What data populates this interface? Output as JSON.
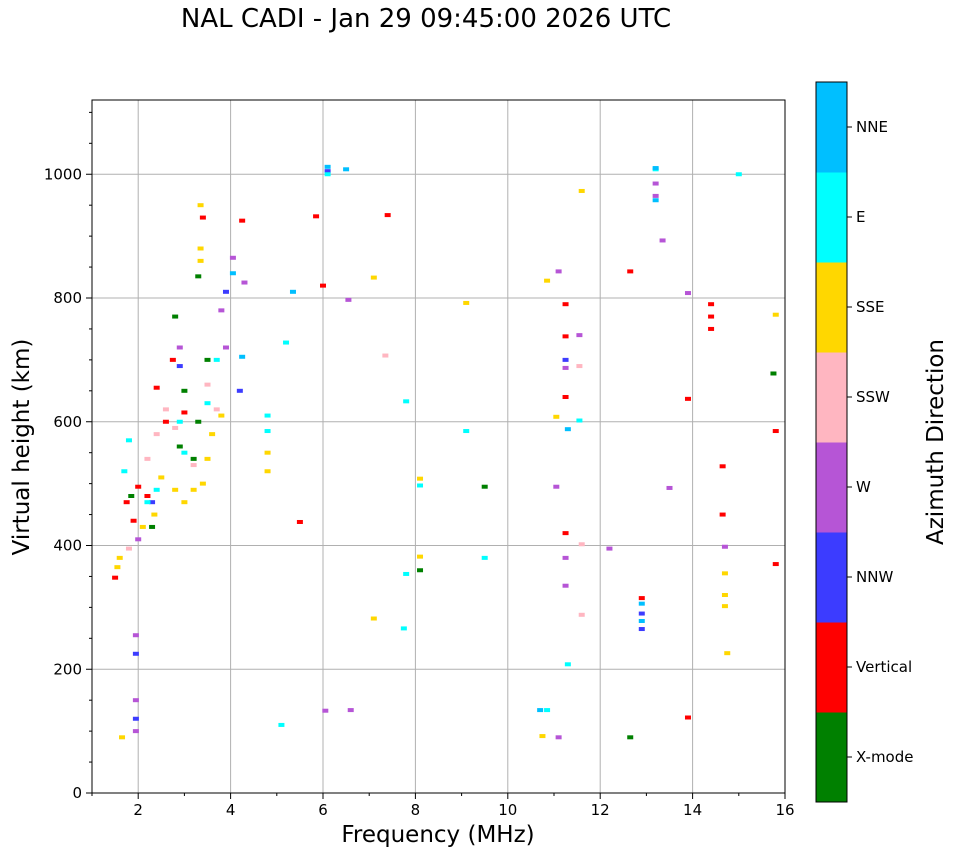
{
  "chart_data": {
    "type": "scatter",
    "title": "NAL CADI - Jan 29 09:45:00 2026 UTC",
    "xlabel": "Frequency (MHz)",
    "ylabel": "Virtual height (km)",
    "xlim": [
      1,
      16
    ],
    "ylim": [
      0,
      1120
    ],
    "xticks": [
      2,
      4,
      6,
      8,
      10,
      12,
      14,
      16
    ],
    "yticks": [
      0,
      200,
      400,
      600,
      800,
      1000
    ],
    "grid": true,
    "colorbar": {
      "label": "Azimuth Direction",
      "categories": [
        "X-mode",
        "Vertical",
        "NNW",
        "W",
        "SSW",
        "SSE",
        "E",
        "NNE"
      ],
      "colors": {
        "X-mode": "#008000",
        "Vertical": "#ff0000",
        "NNW": "#3c3cff",
        "W": "#b655d6",
        "SSW": "#ffb6c1",
        "SSE": "#ffd700",
        "E": "#00ffff",
        "NNE": "#00bfff"
      }
    },
    "series": [
      {
        "name": "X-mode",
        "points": [
          [
            1.85,
            480
          ],
          [
            2.3,
            430
          ],
          [
            2.8,
            770
          ],
          [
            2.9,
            560
          ],
          [
            3.0,
            650
          ],
          [
            3.2,
            540
          ],
          [
            3.3,
            600
          ],
          [
            3.5,
            700
          ],
          [
            3.3,
            835
          ],
          [
            8.1,
            360
          ],
          [
            9.5,
            495
          ],
          [
            12.65,
            90
          ],
          [
            15.75,
            678
          ]
        ]
      },
      {
        "name": "Vertical",
        "points": [
          [
            1.5,
            348
          ],
          [
            1.75,
            470
          ],
          [
            1.9,
            440
          ],
          [
            2.0,
            495
          ],
          [
            2.2,
            480
          ],
          [
            2.4,
            655
          ],
          [
            2.6,
            600
          ],
          [
            2.75,
            700
          ],
          [
            3.0,
            615
          ],
          [
            3.4,
            930
          ],
          [
            4.25,
            925
          ],
          [
            5.5,
            438
          ],
          [
            5.85,
            932
          ],
          [
            6.0,
            820
          ],
          [
            7.4,
            934
          ],
          [
            11.25,
            738
          ],
          [
            11.25,
            640
          ],
          [
            11.25,
            420
          ],
          [
            11.25,
            790
          ],
          [
            12.65,
            843
          ],
          [
            12.9,
            315
          ],
          [
            13.9,
            637
          ],
          [
            13.9,
            122
          ],
          [
            14.4,
            790
          ],
          [
            14.4,
            770
          ],
          [
            14.4,
            750
          ],
          [
            14.65,
            528
          ],
          [
            14.65,
            450
          ],
          [
            15.8,
            585
          ],
          [
            15.8,
            370
          ]
        ]
      },
      {
        "name": "NNW",
        "points": [
          [
            1.95,
            225
          ],
          [
            1.95,
            120
          ],
          [
            2.3,
            470
          ],
          [
            2.9,
            690
          ],
          [
            3.9,
            810
          ],
          [
            4.2,
            650
          ],
          [
            6.1,
            1005
          ],
          [
            11.25,
            700
          ],
          [
            12.9,
            290
          ],
          [
            12.9,
            265
          ]
        ]
      },
      {
        "name": "W",
        "points": [
          [
            1.95,
            255
          ],
          [
            1.95,
            150
          ],
          [
            1.95,
            100
          ],
          [
            2.0,
            410
          ],
          [
            2.9,
            720
          ],
          [
            3.8,
            780
          ],
          [
            3.9,
            720
          ],
          [
            4.05,
            865
          ],
          [
            4.3,
            825
          ],
          [
            6.05,
            133
          ],
          [
            6.6,
            134
          ],
          [
            6.55,
            797
          ],
          [
            11.05,
            495
          ],
          [
            11.1,
            843
          ],
          [
            11.25,
            380
          ],
          [
            11.25,
            335
          ],
          [
            11.25,
            687
          ],
          [
            11.55,
            740
          ],
          [
            12.2,
            395
          ],
          [
            13.2,
            985
          ],
          [
            13.2,
            965
          ],
          [
            13.35,
            893
          ],
          [
            13.5,
            493
          ],
          [
            13.9,
            808
          ],
          [
            14.7,
            398
          ],
          [
            11.1,
            90
          ]
        ]
      },
      {
        "name": "SSW",
        "points": [
          [
            1.8,
            395
          ],
          [
            2.2,
            540
          ],
          [
            2.4,
            580
          ],
          [
            2.6,
            620
          ],
          [
            2.8,
            590
          ],
          [
            3.2,
            530
          ],
          [
            3.5,
            660
          ],
          [
            3.7,
            620
          ],
          [
            7.35,
            707
          ],
          [
            11.55,
            690
          ],
          [
            11.6,
            402
          ],
          [
            11.6,
            288
          ]
        ]
      },
      {
        "name": "SSE",
        "points": [
          [
            1.55,
            365
          ],
          [
            1.6,
            380
          ],
          [
            1.65,
            90
          ],
          [
            2.1,
            430
          ],
          [
            2.35,
            450
          ],
          [
            2.5,
            510
          ],
          [
            2.8,
            490
          ],
          [
            3.0,
            470
          ],
          [
            3.2,
            490
          ],
          [
            3.4,
            500
          ],
          [
            3.5,
            540
          ],
          [
            3.6,
            580
          ],
          [
            3.8,
            610
          ],
          [
            3.35,
            950
          ],
          [
            3.35,
            880
          ],
          [
            3.35,
            860
          ],
          [
            4.8,
            550
          ],
          [
            4.8,
            520
          ],
          [
            7.1,
            833
          ],
          [
            7.1,
            282
          ],
          [
            8.1,
            508
          ],
          [
            8.1,
            382
          ],
          [
            9.1,
            792
          ],
          [
            10.75,
            92
          ],
          [
            10.85,
            828
          ],
          [
            11.05,
            608
          ],
          [
            11.6,
            973
          ],
          [
            14.7,
            355
          ],
          [
            14.7,
            320
          ],
          [
            14.7,
            302
          ],
          [
            14.75,
            226
          ],
          [
            15.8,
            773
          ]
        ]
      },
      {
        "name": "E",
        "points": [
          [
            1.7,
            520
          ],
          [
            1.8,
            570
          ],
          [
            2.2,
            470
          ],
          [
            2.4,
            490
          ],
          [
            2.9,
            600
          ],
          [
            3.0,
            550
          ],
          [
            3.5,
            630
          ],
          [
            3.7,
            700
          ],
          [
            4.8,
            610
          ],
          [
            4.8,
            585
          ],
          [
            5.1,
            110
          ],
          [
            5.2,
            728
          ],
          [
            6.1,
            1000
          ],
          [
            7.8,
            633
          ],
          [
            7.8,
            354
          ],
          [
            7.75,
            266
          ],
          [
            8.1,
            497
          ],
          [
            9.1,
            585
          ],
          [
            9.5,
            380
          ],
          [
            11.3,
            208
          ],
          [
            11.55,
            602
          ],
          [
            10.85,
            134
          ],
          [
            13.2,
            1008
          ],
          [
            15.0,
            1000
          ]
        ]
      },
      {
        "name": "NNE",
        "points": [
          [
            4.05,
            840
          ],
          [
            4.25,
            705
          ],
          [
            5.35,
            810
          ],
          [
            6.1,
            1012
          ],
          [
            6.5,
            1008
          ],
          [
            10.7,
            134
          ],
          [
            11.3,
            588
          ],
          [
            12.9,
            306
          ],
          [
            12.9,
            278
          ],
          [
            13.2,
            1010
          ],
          [
            13.2,
            958
          ]
        ]
      }
    ]
  }
}
